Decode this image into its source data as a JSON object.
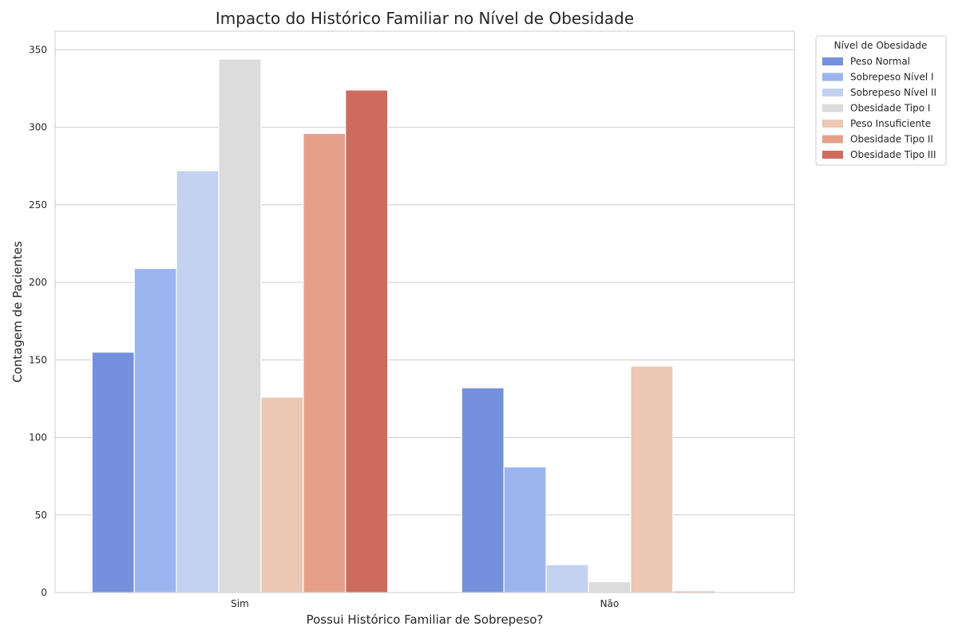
{
  "chart_data": {
    "type": "bar",
    "title": "Impacto do Histórico Familiar no Nível de Obesidade",
    "xlabel": "Possui Histórico Familiar de Sobrepeso?",
    "ylabel": "Contagem de Pacientes",
    "categories": [
      "Sim",
      "Não"
    ],
    "ylim": [
      0,
      362
    ],
    "yticks": [
      0,
      50,
      100,
      150,
      200,
      250,
      300,
      350
    ],
    "grid": "horizontal",
    "legend_title": "Nível de Obesidade",
    "legend_position": "outside-top-right",
    "series": [
      {
        "name": "Peso Normal",
        "color": "#7590dc",
        "values": [
          155,
          132
        ]
      },
      {
        "name": "Sobrepeso Nível I",
        "color": "#9cb5f1",
        "values": [
          209,
          81
        ]
      },
      {
        "name": "Sobrepeso Nível II",
        "color": "#c2d2f0",
        "values": [
          272,
          18
        ]
      },
      {
        "name": "Obesidade Tipo I",
        "color": "#dcdcdc",
        "values": [
          344,
          7
        ]
      },
      {
        "name": "Peso Insuficiente",
        "color": "#ecc7b4",
        "values": [
          126,
          146
        ]
      },
      {
        "name": "Obesidade Tipo II",
        "color": "#e4a08a",
        "values": [
          296,
          1
        ]
      },
      {
        "name": "Obesidade Tipo III",
        "color": "#cd6b5e",
        "values": [
          324,
          0
        ]
      }
    ]
  }
}
